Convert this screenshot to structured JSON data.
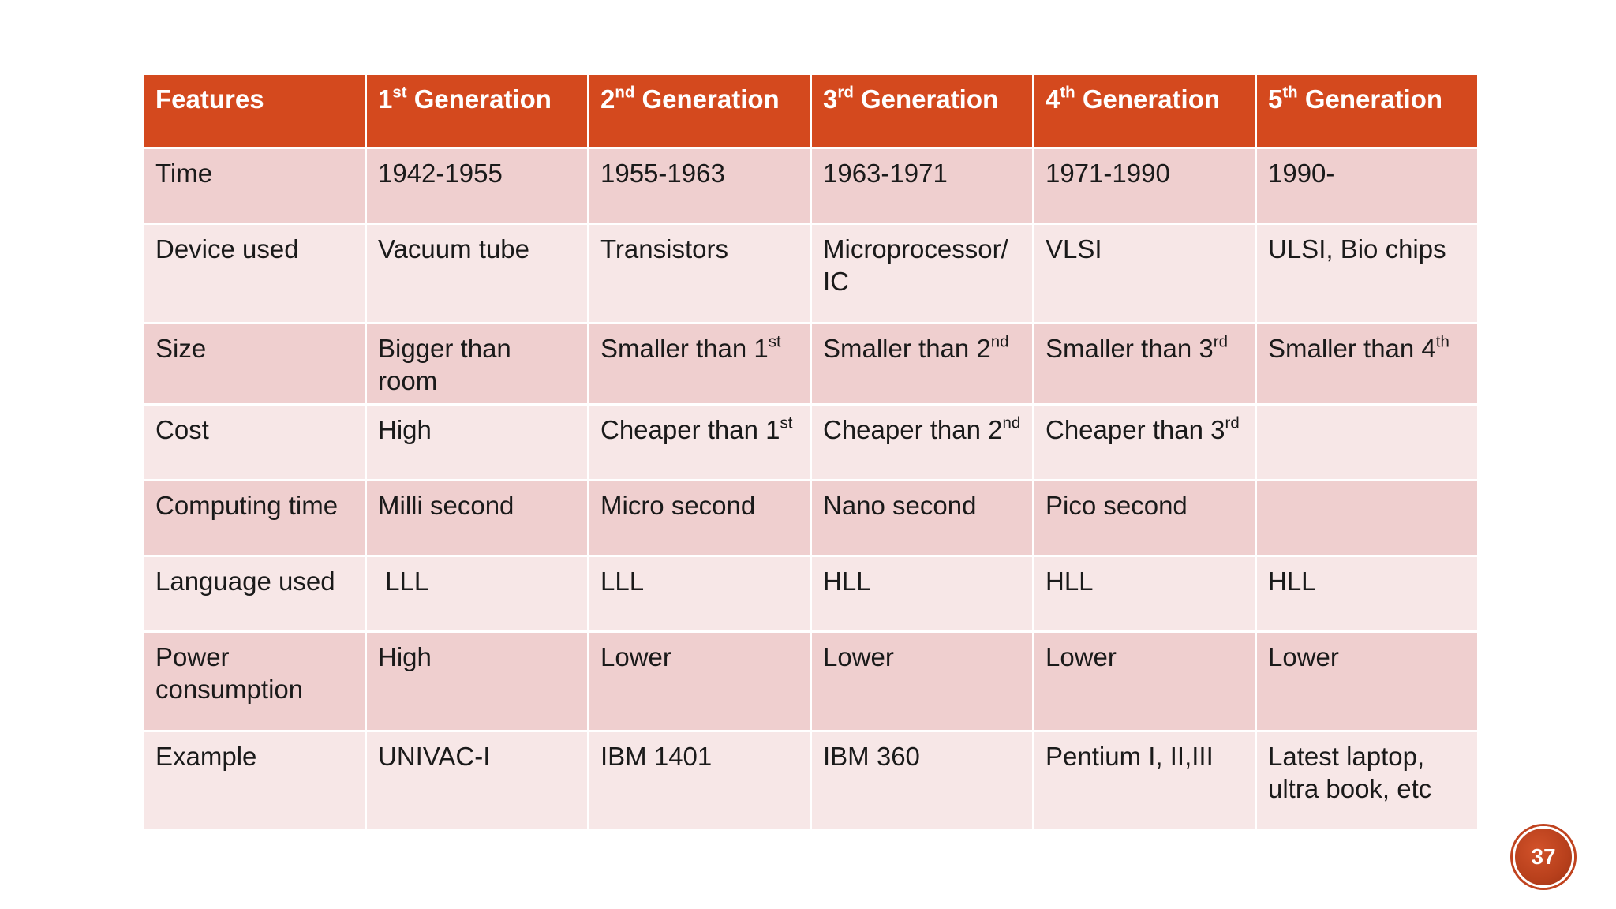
{
  "table": {
    "headers": [
      {
        "base": "Features",
        "sup": ""
      },
      {
        "base": "1",
        "sup": "st",
        "tail": " Generation"
      },
      {
        "base": "2",
        "sup": "nd",
        "tail": " Generation"
      },
      {
        "base": "3",
        "sup": "rd",
        "tail": " Generation"
      },
      {
        "base": "4",
        "sup": "th",
        "tail": " Generation"
      },
      {
        "base": "5",
        "sup": "th",
        "tail": " Generation"
      }
    ],
    "rows": [
      {
        "feature": "Time",
        "cells": [
          {
            "text": "1942-1955"
          },
          {
            "text": "1955-1963"
          },
          {
            "text": "1963-1971"
          },
          {
            "text": "1971-1990"
          },
          {
            "text": "1990-"
          }
        ]
      },
      {
        "feature": "Device used",
        "cells": [
          {
            "text": "Vacuum tube"
          },
          {
            "text": "Transistors"
          },
          {
            "text": "Microprocessor/ IC"
          },
          {
            "text": "VLSI"
          },
          {
            "text": "ULSI, Bio chips"
          }
        ]
      },
      {
        "feature": "Size",
        "cells": [
          {
            "text": "Bigger than room"
          },
          {
            "text": "Smaller than 1",
            "sup": "st"
          },
          {
            "text": "Smaller than 2",
            "sup": "nd"
          },
          {
            "text": "Smaller than 3",
            "sup": "rd"
          },
          {
            "text": "Smaller than 4",
            "sup": "th"
          }
        ]
      },
      {
        "feature": "Cost",
        "cells": [
          {
            "text": "High"
          },
          {
            "text": "Cheaper than 1",
            "sup": "st"
          },
          {
            "text": "Cheaper than 2",
            "sup": "nd"
          },
          {
            "text": "Cheaper than 3",
            "sup": "rd"
          },
          {
            "text": ""
          }
        ]
      },
      {
        "feature": "Computing time",
        "cells": [
          {
            "text": "Milli second"
          },
          {
            "text": "Micro second"
          },
          {
            "text": "Nano second"
          },
          {
            "text": "Pico second"
          },
          {
            "text": ""
          }
        ]
      },
      {
        "feature": "Language used",
        "cells": [
          {
            "text": " LLL"
          },
          {
            "text": "LLL"
          },
          {
            "text": "HLL"
          },
          {
            "text": "HLL"
          },
          {
            "text": "HLL"
          }
        ]
      },
      {
        "feature": "Power consumption",
        "cells": [
          {
            "text": "High"
          },
          {
            "text": "Lower"
          },
          {
            "text": "Lower"
          },
          {
            "text": "Lower"
          },
          {
            "text": "Lower"
          }
        ]
      },
      {
        "feature": "Example",
        "cells": [
          {
            "text": "UNIVAC-I"
          },
          {
            "text": "IBM 1401"
          },
          {
            "text": "IBM 360"
          },
          {
            "text": "Pentium I, II,III"
          },
          {
            "text": "Latest laptop, ultra book, etc"
          }
        ]
      }
    ]
  },
  "page_number": "37",
  "colors": {
    "header_bg": "#d4491e",
    "row_dark": "#efcfcf",
    "row_light": "#f7e7e7",
    "badge": "#c0431f"
  }
}
